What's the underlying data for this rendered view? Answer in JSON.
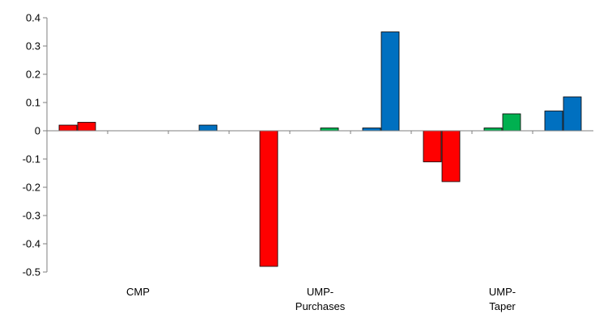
{
  "chart_data": {
    "type": "bar",
    "title": "",
    "xlabel": "",
    "ylabel": "",
    "ylim": [
      -0.5,
      0.4
    ],
    "yticks": [
      0.4,
      0.3,
      0.2,
      0.1,
      0,
      -0.1,
      -0.2,
      -0.3,
      -0.4,
      -0.5
    ],
    "grid": false,
    "legend": "none",
    "categories": [
      {
        "lines": [
          "CMP"
        ]
      },
      {
        "lines": [
          "UMP-",
          "Purchases"
        ]
      },
      {
        "lines": [
          "UMP-",
          "Taper"
        ]
      }
    ],
    "bar_groups": [
      {
        "category": 0,
        "bars": [
          {
            "value": 0.02,
            "color": "#ff0000"
          },
          {
            "value": 0.03,
            "color": "#ff0000"
          }
        ]
      },
      {
        "category": 0,
        "bars": [
          {
            "value": 0.0,
            "color": "#00b050"
          },
          {
            "value": 0.0,
            "color": "#00b050"
          }
        ]
      },
      {
        "category": 0,
        "bars": [
          {
            "value": 0.0,
            "color": "#0070c0"
          },
          {
            "value": 0.02,
            "color": "#0070c0"
          }
        ]
      },
      {
        "category": 1,
        "bars": [
          {
            "value": 0.0,
            "color": "#ff0000"
          },
          {
            "value": -0.48,
            "color": "#ff0000"
          }
        ]
      },
      {
        "category": 1,
        "bars": [
          {
            "value": 0.0,
            "color": "#00b050"
          },
          {
            "value": 0.01,
            "color": "#00b050"
          }
        ]
      },
      {
        "category": 1,
        "bars": [
          {
            "value": 0.01,
            "color": "#0070c0"
          },
          {
            "value": 0.35,
            "color": "#0070c0"
          }
        ]
      },
      {
        "category": 2,
        "bars": [
          {
            "value": -0.11,
            "color": "#ff0000"
          },
          {
            "value": -0.18,
            "color": "#ff0000"
          }
        ]
      },
      {
        "category": 2,
        "bars": [
          {
            "value": 0.01,
            "color": "#00b050"
          },
          {
            "value": 0.06,
            "color": "#00b050"
          }
        ]
      },
      {
        "category": 2,
        "bars": [
          {
            "value": 0.07,
            "color": "#0070c0"
          },
          {
            "value": 0.12,
            "color": "#0070c0"
          }
        ]
      }
    ]
  }
}
